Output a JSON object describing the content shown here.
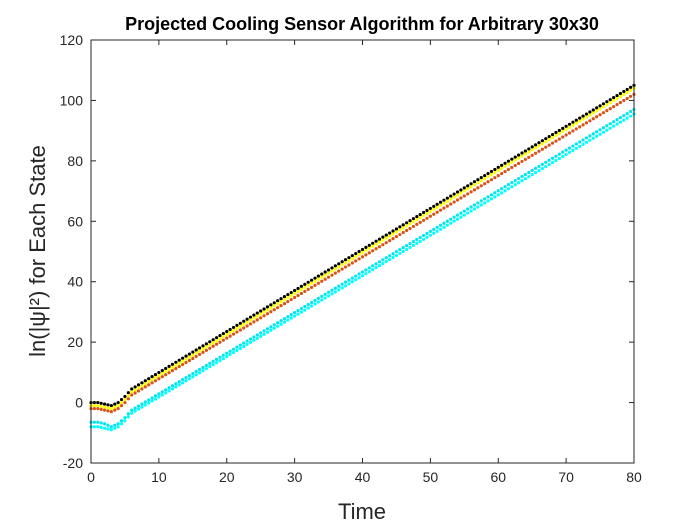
{
  "chart_data": {
    "type": "scatter",
    "title": "Projected Cooling Sensor Algorithm for Arbitrary 30x30",
    "xlabel": "Time",
    "ylabel": "ln(|ψ|²) for Each State",
    "xlim": [
      0,
      80
    ],
    "ylim": [
      -20,
      120
    ],
    "xticks": [
      0,
      10,
      20,
      30,
      40,
      50,
      60,
      70,
      80
    ],
    "yticks": [
      -20,
      0,
      20,
      40,
      60,
      80,
      100,
      120
    ],
    "grid": false,
    "legend": "none",
    "series": [
      {
        "color": "#000000",
        "points": [
          [
            0,
            0
          ],
          [
            1,
            0
          ],
          [
            2,
            -0.5
          ],
          [
            3,
            -1
          ],
          [
            4,
            0
          ],
          [
            5,
            2
          ],
          [
            6,
            4.5
          ],
          [
            80,
            105
          ]
        ]
      },
      {
        "color": "#ffff00",
        "points": [
          [
            0,
            -1
          ],
          [
            1,
            -1
          ],
          [
            2,
            -1.5
          ],
          [
            3,
            -2
          ],
          [
            4,
            -1
          ],
          [
            5,
            1
          ],
          [
            6,
            3.5
          ],
          [
            80,
            104
          ]
        ]
      },
      {
        "color": "#d95319",
        "points": [
          [
            0,
            -2
          ],
          [
            1,
            -2
          ],
          [
            2,
            -2.5
          ],
          [
            3,
            -3
          ],
          [
            4,
            -2
          ],
          [
            5,
            0
          ],
          [
            6,
            2.5
          ],
          [
            80,
            102
          ]
        ]
      },
      {
        "color": "#00e5ee",
        "points": [
          [
            0,
            -6.5
          ],
          [
            1,
            -6.5
          ],
          [
            2,
            -7
          ],
          [
            3,
            -8
          ],
          [
            4,
            -7
          ],
          [
            5,
            -5
          ],
          [
            6,
            -2.5
          ],
          [
            80,
            97
          ]
        ]
      },
      {
        "color": "#00ffff",
        "points": [
          [
            0,
            -8
          ],
          [
            1,
            -8
          ],
          [
            2,
            -8.5
          ],
          [
            3,
            -9
          ],
          [
            4,
            -8
          ],
          [
            5,
            -6
          ],
          [
            6,
            -3.5
          ],
          [
            80,
            95.5
          ]
        ]
      }
    ]
  }
}
